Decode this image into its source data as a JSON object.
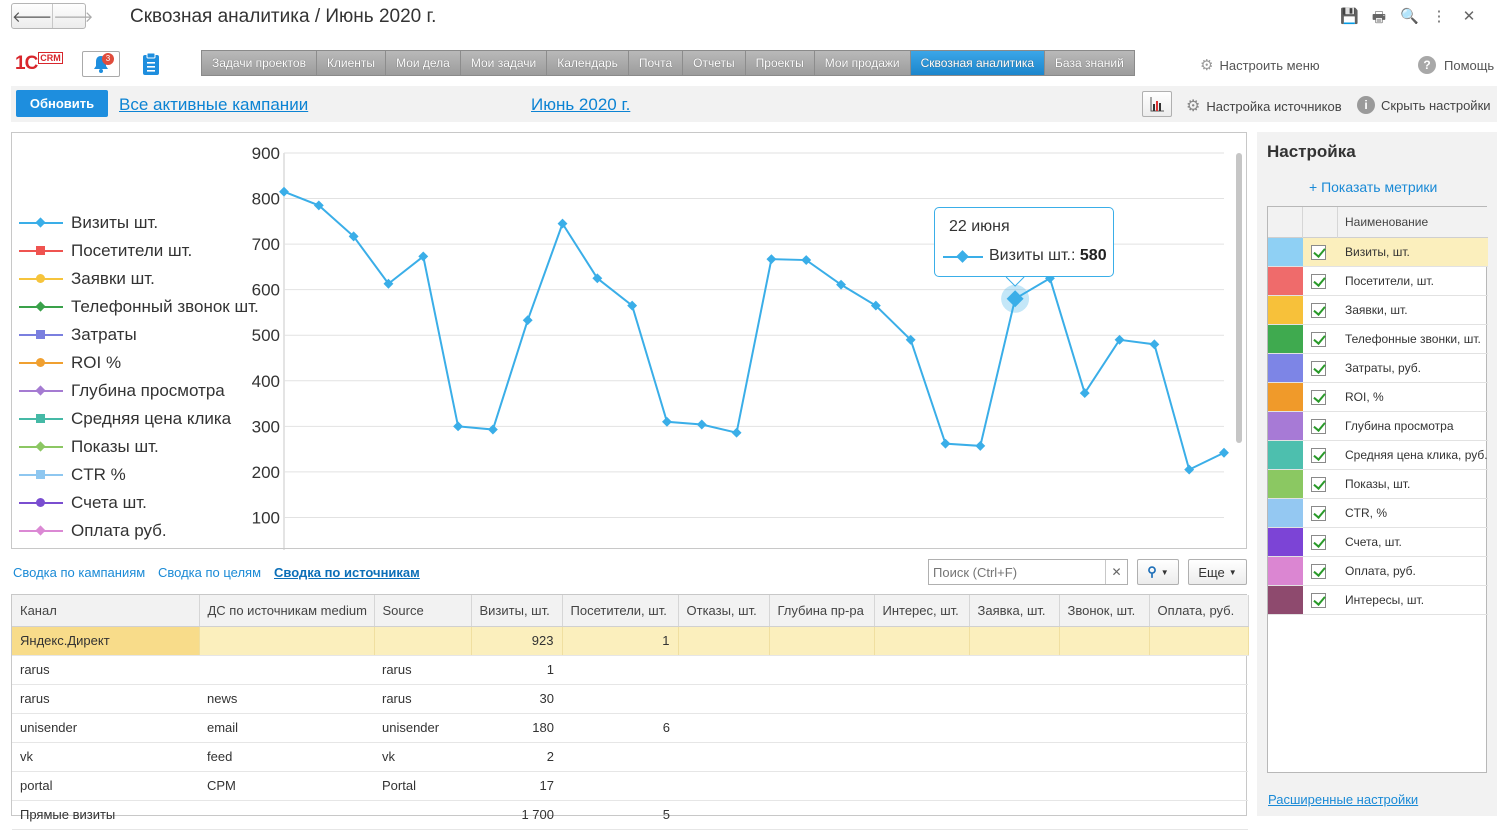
{
  "window": {
    "title": "Сквозная аналитика / Июнь 2020 г.",
    "back_icon": "arrow-left-icon",
    "forward_icon": "arrow-right-icon"
  },
  "header": {
    "logo_text": "1C",
    "logo_badge": "CRM",
    "notifications_count": "3"
  },
  "menu": {
    "items": [
      "Задачи проектов",
      "Клиенты",
      "Мои дела",
      "Мои задачи",
      "Календарь",
      "Почта",
      "Отчеты",
      "Проекты",
      "Мои продажи",
      "Сквозная аналитика",
      "База знаний"
    ],
    "active": "Сквозная аналитика",
    "configure": "Настроить меню",
    "help": "Помощь"
  },
  "toolbar": {
    "refresh": "Обновить",
    "campaigns": "Все активные кампании",
    "period": "Июнь 2020 г.",
    "sources_settings": "Настройка источников",
    "hide_settings": "Скрыть настройки"
  },
  "chart_data": {
    "type": "line",
    "title": "",
    "xlabel": "",
    "ylabel": "",
    "ylim": [
      0,
      900
    ],
    "yticks": [
      100,
      200,
      300,
      400,
      500,
      600,
      700,
      800,
      900
    ],
    "grid": true,
    "legend_position": "left",
    "legend": [
      {
        "name": "Визиты шт.",
        "color": "#3aaee8",
        "marker": "diamond"
      },
      {
        "name": "Посетители шт.",
        "color": "#ef5350",
        "marker": "square"
      },
      {
        "name": "Заявки шт.",
        "color": "#f6c43c",
        "marker": "circle"
      },
      {
        "name": "Телефонный звонок шт.",
        "color": "#3aa14a",
        "marker": "diamond"
      },
      {
        "name": "Затраты",
        "color": "#7a7fdf",
        "marker": "square"
      },
      {
        "name": "ROI %",
        "color": "#f0a030",
        "marker": "circle"
      },
      {
        "name": "Глубина просмотра",
        "color": "#a57bd2",
        "marker": "diamond"
      },
      {
        "name": "Средняя цена клика",
        "color": "#45b9a6",
        "marker": "square"
      },
      {
        "name": "Показы шт.",
        "color": "#8cc763",
        "marker": "diamond"
      },
      {
        "name": "CTR %",
        "color": "#8ec7f0",
        "marker": "square"
      },
      {
        "name": "Счета шт.",
        "color": "#7a4ed0",
        "marker": "circle"
      },
      {
        "name": "Оплата руб.",
        "color": "#db89d4",
        "marker": "diamond"
      }
    ],
    "series": [
      {
        "name": "Визиты шт.",
        "color": "#3aaee8",
        "values": [
          815,
          785,
          717,
          613,
          673,
          300,
          293,
          533,
          745,
          625,
          565,
          310,
          304,
          286,
          667,
          665,
          611,
          565,
          490,
          262,
          257,
          580,
          625,
          373,
          490,
          480,
          205,
          242
        ]
      }
    ],
    "tooltip": {
      "date": "22 июня",
      "series": "Визиты шт.",
      "value": "580",
      "point_index": 21
    }
  },
  "tabs": {
    "campaigns": "Сводка по кампаниям",
    "goals": "Сводка по целям",
    "sources": "Сводка по источникам",
    "active": "Сводка по источникам"
  },
  "search": {
    "placeholder": "Поиск (Ctrl+F)",
    "more": "Еще"
  },
  "table": {
    "columns": [
      "Канал",
      "ДС по источникам medium",
      "Source",
      "Визиты, шт.",
      "Посетители, шт.",
      "Отказы, шт.",
      "Глубина пр-ра",
      "Интерес, шт.",
      "Заявка, шт.",
      "Звонок, шт.",
      "Оплата, руб."
    ],
    "rows": [
      {
        "channel": "Яндекс.Директ",
        "medium": "",
        "source": "",
        "visits": "923",
        "visitors": "1"
      },
      {
        "channel": "rarus",
        "medium": "",
        "source": "rarus",
        "visits": "1",
        "visitors": ""
      },
      {
        "channel": "rarus",
        "medium": "news",
        "source": "rarus",
        "visits": "30",
        "visitors": ""
      },
      {
        "channel": "unisender",
        "medium": "email",
        "source": "unisender",
        "visits": "180",
        "visitors": "6"
      },
      {
        "channel": "vk",
        "medium": "feed",
        "source": "vk",
        "visits": "2",
        "visitors": ""
      },
      {
        "channel": "portal",
        "medium": "CPM",
        "source": "Portal",
        "visits": "17",
        "visitors": ""
      },
      {
        "channel": "Прямые визиты",
        "medium": "",
        "source": "",
        "visits": "1 700",
        "visitors": "5"
      }
    ]
  },
  "settings": {
    "title": "Настройка",
    "show_metrics": "+ Показать метрики",
    "column_name": "Наименование",
    "metrics": [
      {
        "name": "Визиты, шт.",
        "color": "#8fd0f4"
      },
      {
        "name": "Посетители, шт.",
        "color": "#ef6b6b"
      },
      {
        "name": "Заявки, шт.",
        "color": "#f7c13a"
      },
      {
        "name": "Телефонные звонки, шт.",
        "color": "#3faa4f"
      },
      {
        "name": "Затраты, руб.",
        "color": "#7d85e6"
      },
      {
        "name": "ROI, %",
        "color": "#f09a2a"
      },
      {
        "name": "Глубина просмотра",
        "color": "#a77ad6"
      },
      {
        "name": "Средняя цена клика, руб.",
        "color": "#4dbfae"
      },
      {
        "name": "Показы, шт.",
        "color": "#8bc862"
      },
      {
        "name": "CTR, %",
        "color": "#94c8f2"
      },
      {
        "name": "Счета, шт.",
        "color": "#7c44d6"
      },
      {
        "name": "Оплата, руб.",
        "color": "#db86d2"
      },
      {
        "name": "Интересы, шт.",
        "color": "#8e4a6e"
      }
    ],
    "advanced": "Расширенные настройки"
  }
}
